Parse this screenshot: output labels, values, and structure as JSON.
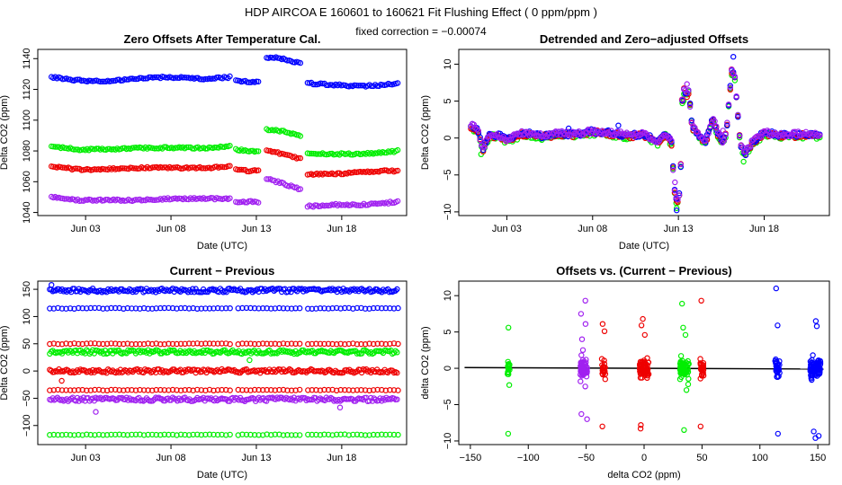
{
  "figure": {
    "title": "HDP   AIRCOA E   160601 to 160621   Fit Flushing Effect ( 0 ppm/ppm )",
    "subtitle": "fixed correction = −0.00074",
    "colors": {
      "blue": "#0000ff",
      "green": "#00ee00",
      "red": "#ee0000",
      "purple": "#a020f0",
      "axis": "#000000"
    }
  },
  "chart_data": [
    {
      "id": "p1",
      "type": "scatter",
      "title": "Zero Offsets After Temperature Cal.",
      "xlabel": "Date (UTC)",
      "ylabel": "Delta CO2 (ppm)",
      "xlim": [
        0.2,
        21.8
      ],
      "ylim": [
        1038,
        1146
      ],
      "xticks": [
        3,
        8,
        13,
        18
      ],
      "xtick_labels": [
        "Jun 03",
        "Jun 08",
        "Jun 13",
        "Jun 18"
      ],
      "yticks": [
        1040,
        1060,
        1080,
        1100,
        1120,
        1140
      ],
      "series": [
        {
          "name": "blue",
          "color": "#0000ff",
          "segments": [
            {
              "x": [
                1.0,
                2.5,
                4.0,
                6.0,
                8.0,
                10.0,
                11.5
              ],
              "y": [
                1128,
                1126,
                1125,
                1127,
                1128,
                1127,
                1128
              ]
            },
            {
              "x": [
                11.8,
                12.5,
                13.2
              ],
              "y": [
                1126,
                1125,
                1125
              ]
            },
            {
              "x": [
                13.6,
                14.5,
                15.6
              ],
              "y": [
                1141,
                1140,
                1137
              ]
            },
            {
              "x": [
                16.0,
                17.5,
                19.0,
                20.5,
                21.3
              ],
              "y": [
                1124,
                1123,
                1122,
                1123,
                1124
              ]
            }
          ]
        },
        {
          "name": "green",
          "color": "#00ee00",
          "segments": [
            {
              "x": [
                1.0,
                2.5,
                4.0,
                6.0,
                8.0,
                10.0,
                11.5
              ],
              "y": [
                1083,
                1081,
                1081,
                1082,
                1082,
                1082,
                1083
              ]
            },
            {
              "x": [
                11.8,
                12.5,
                13.2
              ],
              "y": [
                1081,
                1080,
                1080
              ]
            },
            {
              "x": [
                13.6,
                14.5,
                15.6
              ],
              "y": [
                1094,
                1093,
                1090
              ]
            },
            {
              "x": [
                16.0,
                17.5,
                19.0,
                20.5,
                21.3
              ],
              "y": [
                1078,
                1078,
                1078,
                1079,
                1080
              ]
            }
          ]
        },
        {
          "name": "red",
          "color": "#ee0000",
          "segments": [
            {
              "x": [
                1.0,
                2.5,
                4.0,
                6.0,
                8.0,
                10.0,
                11.5
              ],
              "y": [
                1070,
                1068,
                1068,
                1069,
                1069,
                1069,
                1070
              ]
            },
            {
              "x": [
                11.8,
                12.5,
                13.2
              ],
              "y": [
                1068,
                1067,
                1067
              ]
            },
            {
              "x": [
                13.6,
                14.5,
                15.6
              ],
              "y": [
                1081,
                1078,
                1075
              ]
            },
            {
              "x": [
                16.0,
                17.5,
                19.0,
                20.5,
                21.3
              ],
              "y": [
                1065,
                1065,
                1066,
                1067,
                1067
              ]
            }
          ]
        },
        {
          "name": "purple",
          "color": "#a020f0",
          "segments": [
            {
              "x": [
                1.0,
                2.5,
                4.0,
                6.0,
                8.0,
                10.0,
                11.5
              ],
              "y": [
                1050,
                1048,
                1048,
                1048,
                1049,
                1049,
                1049
              ]
            },
            {
              "x": [
                11.8,
                12.5,
                13.2
              ],
              "y": [
                1047,
                1047,
                1047
              ]
            },
            {
              "x": [
                13.6,
                14.5,
                15.6
              ],
              "y": [
                1062,
                1059,
                1055
              ]
            },
            {
              "x": [
                16.0,
                17.5,
                19.0,
                20.5,
                21.3
              ],
              "y": [
                1044,
                1045,
                1045,
                1046,
                1047
              ]
            }
          ]
        }
      ]
    },
    {
      "id": "p2",
      "type": "scatter",
      "title": "Detrended and Zero−adjusted Offsets",
      "xlabel": "Date (UTC)",
      "ylabel": "Delta CO2 (ppm)",
      "xlim": [
        0.2,
        21.8
      ],
      "ylim": [
        -10.5,
        12
      ],
      "xticks": [
        3,
        8,
        13,
        18
      ],
      "xtick_labels": [
        "Jun 03",
        "Jun 08",
        "Jun 13",
        "Jun 18"
      ],
      "yticks": [
        -10,
        -5,
        0,
        5,
        10
      ],
      "ytick_labels": [
        "−10",
        "−5",
        "0",
        "5",
        "10"
      ],
      "series": [
        {
          "name": "blue",
          "color": "#0000ff",
          "x": [
            6.6,
            9.5,
            12.9,
            13.4,
            16.2
          ],
          "y": [
            1.3,
            1.7,
            -9.8,
            6.0,
            11.0
          ]
        },
        {
          "name": "green",
          "color": "#00ee00",
          "x": [
            1.5,
            12.9,
            13.3,
            16.8
          ],
          "y": [
            -2.2,
            -9.5,
            5.0,
            -3.2
          ]
        },
        {
          "name": "red",
          "color": "#ee0000",
          "x": [
            12.9,
            13.2,
            16.1
          ],
          "y": [
            -8.5,
            5.2,
            9.3
          ]
        },
        {
          "name": "purple",
          "color": "#a020f0",
          "x": [
            12.8,
            13.5,
            15.6
          ],
          "y": [
            -6.0,
            7.3,
            1.0
          ]
        }
      ],
      "trace": {
        "x": [
          0.9,
          1.3,
          1.6,
          2.0,
          2.5,
          3.0,
          4.0,
          5.0,
          6.0,
          7.0,
          8.0,
          9.0,
          10.0,
          11.0,
          11.8,
          12.3,
          12.6,
          12.75,
          12.9,
          13.1,
          13.25,
          13.45,
          13.6,
          13.8,
          14.2,
          14.6,
          15.0,
          15.3,
          15.6,
          15.8,
          16.1,
          16.3,
          16.6,
          16.9,
          17.3,
          18.0,
          19.0,
          20.0,
          21.0,
          21.3
        ],
        "y": [
          1.6,
          1.0,
          -1.6,
          0.4,
          0.3,
          -0.3,
          0.6,
          0.2,
          0.5,
          0.4,
          0.8,
          0.6,
          0.3,
          0.4,
          -0.6,
          0.5,
          -0.8,
          -6.5,
          -9.0,
          -7.5,
          6.8,
          5.8,
          6.2,
          1.6,
          0.3,
          -0.5,
          2.6,
          0.6,
          -0.6,
          0.8,
          9.0,
          8.0,
          -1.0,
          -2.2,
          -0.6,
          0.6,
          0.3,
          0.4,
          0.4,
          0.2
        ]
      }
    },
    {
      "id": "p3",
      "type": "scatter",
      "title": "Current − Previous",
      "xlabel": "Date (UTC)",
      "ylabel": "Delta CO2 (ppm)",
      "xlim": [
        0.2,
        21.8
      ],
      "ylim": [
        -135,
        165
      ],
      "xticks": [
        3,
        8,
        13,
        18
      ],
      "xtick_labels": [
        "Jun 03",
        "Jun 08",
        "Jun 13",
        "Jun 18"
      ],
      "yticks": [
        -100,
        -50,
        0,
        50,
        100,
        150
      ],
      "ytick_labels": [
        "−100",
        "−50",
        "0",
        "50",
        "100",
        "150"
      ],
      "series": [
        {
          "name": "blue",
          "color": "#0000ff",
          "levels": [
            148,
            115
          ]
        },
        {
          "name": "green",
          "color": "#00ee00",
          "levels": [
            35,
            -117
          ]
        },
        {
          "name": "red",
          "color": "#ee0000",
          "levels": [
            50,
            0,
            -35
          ]
        },
        {
          "name": "purple",
          "color": "#a020f0",
          "levels": [
            -52
          ]
        }
      ],
      "outliers": {
        "x": [
          1.0,
          3.6,
          12.6,
          17.9,
          1.6
        ],
        "y": [
          158,
          -75,
          20,
          -67,
          -18
        ],
        "colors": [
          "#0000ff",
          "#a020f0",
          "#00ee00",
          "#a020f0",
          "#ee0000"
        ]
      }
    },
    {
      "id": "p4",
      "type": "scatter",
      "title": "Offsets vs. (Current − Previous)",
      "xlabel": "delta CO2 (ppm)",
      "ylabel": "delta CO2 (ppm)",
      "xlim": [
        -160,
        160
      ],
      "ylim": [
        -10.5,
        12
      ],
      "xticks": [
        -150,
        -100,
        -50,
        0,
        50,
        100,
        150
      ],
      "xtick_labels": [
        "−150",
        "−100",
        "−50",
        "0",
        "50",
        "100",
        "150"
      ],
      "yticks": [
        -10,
        -5,
        0,
        5,
        10
      ],
      "ytick_labels": [
        "−10",
        "−5",
        "0",
        "5",
        "10"
      ],
      "fit_line": {
        "x": [
          -155,
          155
        ],
        "y": [
          0.1,
          -0.1
        ]
      },
      "clusters": [
        {
          "color": "#00ee00",
          "x": -117,
          "spread": 0.9,
          "y": [
            -2.3,
            -0.8,
            0.2,
            0.6,
            0.3,
            -0.2,
            0.9,
            5.6,
            -9.0
          ]
        },
        {
          "color": "#a020f0",
          "x": -52,
          "spread": 3.0,
          "y": [
            -0.8,
            -0.2,
            0.4,
            1.2,
            -1.8,
            2.5,
            4.0,
            6.1,
            7.5,
            9.3,
            -6.3,
            -7.0,
            -2.5,
            0.8,
            1.8
          ]
        },
        {
          "color": "#ee0000",
          "x": -35,
          "spread": 1.5,
          "y": [
            -1.5,
            -0.6,
            0.1,
            0.6,
            1.3,
            5.1,
            6.1,
            -8.0,
            -0.3
          ]
        },
        {
          "color": "#ee0000",
          "x": 0,
          "spread": 4.0,
          "y": [
            -1.3,
            -0.6,
            0.0,
            0.4,
            0.9,
            -0.2,
            0.7,
            1.4,
            4.6,
            6.8,
            5.9,
            -7.8,
            -8.3,
            0.2,
            -0.8
          ]
        },
        {
          "color": "#00ee00",
          "x": 35,
          "spread": 4.0,
          "y": [
            -3.0,
            -1.5,
            -0.5,
            0.3,
            1.0,
            1.7,
            4.6,
            5.6,
            8.9,
            -8.5,
            -2.2,
            0.6
          ]
        },
        {
          "color": "#ee0000",
          "x": 50,
          "spread": 1.5,
          "y": [
            -1.0,
            -0.2,
            0.5,
            1.3,
            9.3,
            -8.0
          ]
        },
        {
          "color": "#0000ff",
          "x": 115,
          "spread": 2.0,
          "y": [
            -1.2,
            -0.4,
            0.3,
            1.0,
            5.9,
            11.0,
            -9.0
          ]
        },
        {
          "color": "#0000ff",
          "x": 148,
          "spread": 4.5,
          "y": [
            -1.6,
            -0.8,
            -0.2,
            0.2,
            0.6,
            1.1,
            1.8,
            6.5,
            5.8,
            -8.7,
            -9.3,
            -9.6,
            -0.5
          ]
        }
      ]
    }
  ]
}
